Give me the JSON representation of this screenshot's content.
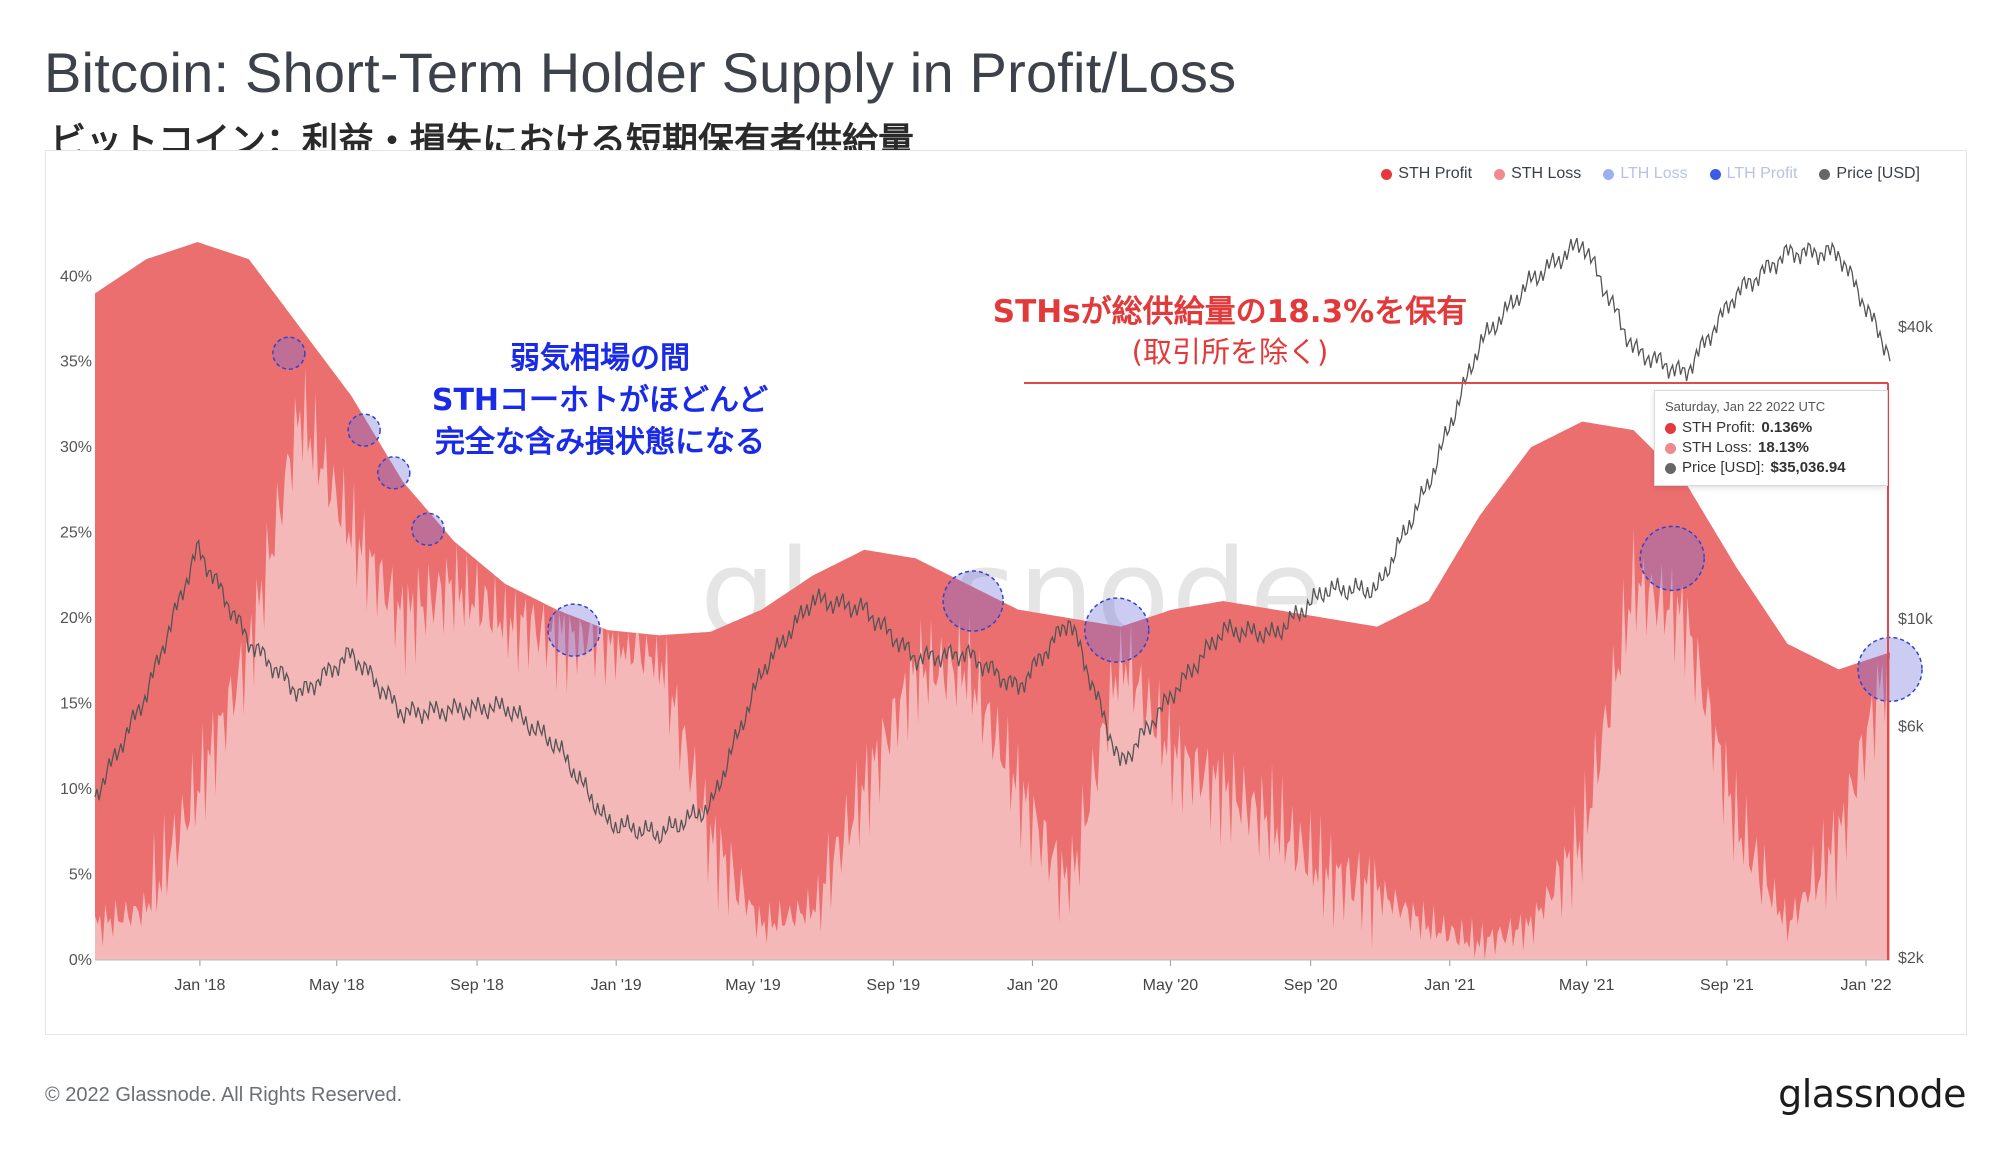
{
  "title": "Bitcoin: Short-Term Holder Supply in Profit/Loss",
  "subtitle": "ビットコイン：利益・損失における短期保有者供給量",
  "footer": {
    "copyright": "© 2022 Glassnode. All Rights Reserved.",
    "logo": "glassnode"
  },
  "watermark": "glassnode",
  "legend": [
    {
      "label": "STH Profit",
      "color": "#e5383b",
      "muted": false
    },
    {
      "label": "STH Loss",
      "color": "#f08a8c",
      "muted": false
    },
    {
      "label": "LTH Loss",
      "color": "#9bb0f0",
      "muted": true
    },
    {
      "label": "LTH Profit",
      "color": "#3c5be6",
      "muted": true
    },
    {
      "label": "Price [USD]",
      "color": "#666666",
      "muted": false
    }
  ],
  "annotations": {
    "blue": [
      "弱気相場の間",
      "STHコーホトがほどんど",
      "完全な含み損状態になる"
    ],
    "red_line1": "STHsが総供給量の18.3%を保有",
    "red_line2": "(取引所を除く)"
  },
  "tooltip": {
    "date": "Saturday, Jan 22 2022 UTC",
    "rows": [
      {
        "label": "STH Profit:",
        "value": "0.136%",
        "color": "#e5383b"
      },
      {
        "label": "STH Loss:",
        "value": "18.13%",
        "color": "#f08a8c"
      },
      {
        "label": "Price [USD]:",
        "value": "$35,036.94",
        "color": "#666666"
      }
    ]
  },
  "chart_data": {
    "type": "area",
    "title": "Bitcoin: Short-Term Holder Supply in Profit/Loss",
    "x_tick_labels": [
      "Jan '18",
      "May '18",
      "Sep '18",
      "Jan '19",
      "May '19",
      "Sep '19",
      "Jan '20",
      "May '20",
      "Sep '20",
      "Jan '21",
      "May '21",
      "Sep '21",
      "Jan '22"
    ],
    "y_left_ticks": [
      "0%",
      "5%",
      "10%",
      "15%",
      "20%",
      "25%",
      "30%",
      "35%",
      "40%"
    ],
    "y_left_range": [
      0,
      0.43
    ],
    "y_right_ticks": [
      "$2k",
      "$6k",
      "$10k",
      "$40k"
    ],
    "y_right_scale": "log",
    "x": [
      "2017-10-01",
      "2017-11-15",
      "2018-01-01",
      "2018-02-15",
      "2018-04-01",
      "2018-05-15",
      "2018-07-01",
      "2018-08-15",
      "2018-10-01",
      "2018-11-15",
      "2019-01-01",
      "2019-02-15",
      "2019-04-01",
      "2019-05-15",
      "2019-07-01",
      "2019-08-15",
      "2019-10-01",
      "2019-11-15",
      "2020-01-01",
      "2020-02-15",
      "2020-03-15",
      "2020-04-15",
      "2020-06-01",
      "2020-07-15",
      "2020-09-01",
      "2020-10-15",
      "2020-12-01",
      "2021-01-15",
      "2021-03-01",
      "2021-04-15",
      "2021-06-01",
      "2021-07-15",
      "2021-09-01",
      "2021-10-15",
      "2021-12-01",
      "2022-01-22"
    ],
    "series": [
      {
        "name": "STH Total",
        "values": [
          0.39,
          0.41,
          0.42,
          0.41,
          0.37,
          0.33,
          0.28,
          0.245,
          0.22,
          0.205,
          0.193,
          0.19,
          0.192,
          0.205,
          0.225,
          0.24,
          0.235,
          0.22,
          0.205,
          0.2,
          0.195,
          0.205,
          0.21,
          0.205,
          0.2,
          0.195,
          0.21,
          0.26,
          0.3,
          0.315,
          0.31,
          0.28,
          0.23,
          0.185,
          0.17,
          0.18
        ]
      },
      {
        "name": "STH Loss",
        "values": [
          0.02,
          0.03,
          0.1,
          0.18,
          0.32,
          0.25,
          0.2,
          0.22,
          0.2,
          0.19,
          0.19,
          0.18,
          0.07,
          0.02,
          0.03,
          0.1,
          0.17,
          0.17,
          0.1,
          0.04,
          0.18,
          0.12,
          0.1,
          0.08,
          0.05,
          0.04,
          0.02,
          0.01,
          0.02,
          0.07,
          0.22,
          0.2,
          0.08,
          0.02,
          0.07,
          0.1813
        ]
      },
      {
        "name": "Price [USD]",
        "values": [
          4300,
          7000,
          14000,
          9000,
          7000,
          8500,
          6400,
          6500,
          6600,
          5500,
          3800,
          3600,
          4100,
          7800,
          11000,
          10500,
          8300,
          8500,
          7200,
          10000,
          5000,
          7000,
          9500,
          9300,
          11500,
          11500,
          19000,
          37000,
          50000,
          60000,
          36000,
          32000,
          47000,
          57000,
          57000,
          35037
        ]
      }
    ],
    "grid": false,
    "legend_position": "top-right"
  }
}
